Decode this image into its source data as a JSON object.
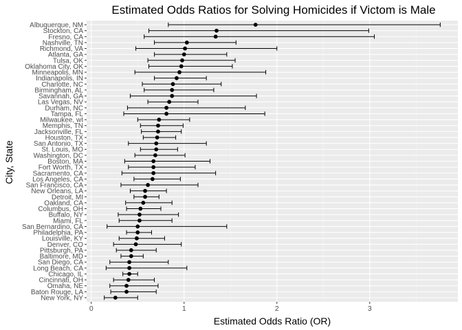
{
  "chart_data": {
    "type": "scatter",
    "title": "Estimated Odds Ratios for Solving Homicides if Victom is Male",
    "xlabel": "Estimated Odds Ratio (OR)",
    "ylabel": "City, State",
    "xlim": [
      -0.05,
      3.95
    ],
    "xticks": [
      0,
      1,
      2,
      3
    ],
    "grid": true,
    "legend": "none",
    "point_color": "#000000",
    "panel_color": "#ebebeb",
    "cities": [
      {
        "name": "Albuquerque, NM",
        "or": 1.77,
        "lo": 0.83,
        "hi": 3.76
      },
      {
        "name": "Stockton, CA",
        "or": 1.35,
        "lo": 0.62,
        "hi": 2.99
      },
      {
        "name": "Fresno, CA",
        "or": 1.34,
        "lo": 0.57,
        "hi": 3.05
      },
      {
        "name": "Nashville, TN",
        "or": 1.03,
        "lo": 0.68,
        "hi": 1.56
      },
      {
        "name": "Richmond, VA",
        "or": 1.01,
        "lo": 0.48,
        "hi": 2.0
      },
      {
        "name": "Atlanta, GA",
        "or": 1.0,
        "lo": 0.68,
        "hi": 1.46
      },
      {
        "name": "Tulsa, OK",
        "or": 0.98,
        "lo": 0.61,
        "hi": 1.55
      },
      {
        "name": "Oklahoma City, OK",
        "or": 0.97,
        "lo": 0.62,
        "hi": 1.52
      },
      {
        "name": "Minneapolis, MN",
        "or": 0.95,
        "lo": 0.47,
        "hi": 1.88
      },
      {
        "name": "Indianapolis, IN",
        "or": 0.92,
        "lo": 0.68,
        "hi": 1.24
      },
      {
        "name": "Charlotte, NC",
        "or": 0.88,
        "lo": 0.55,
        "hi": 1.4
      },
      {
        "name": "Birmingham, AL",
        "or": 0.87,
        "lo": 0.57,
        "hi": 1.32
      },
      {
        "name": "Savannah, GA",
        "or": 0.87,
        "lo": 0.42,
        "hi": 1.78
      },
      {
        "name": "Las Vegas, NV",
        "or": 0.84,
        "lo": 0.61,
        "hi": 1.15
      },
      {
        "name": "Durham, NC",
        "or": 0.81,
        "lo": 0.39,
        "hi": 1.66
      },
      {
        "name": "Tampa, FL",
        "or": 0.81,
        "lo": 0.35,
        "hi": 1.87
      },
      {
        "name": "Milwaukee, wI",
        "or": 0.73,
        "lo": 0.5,
        "hi": 1.06
      },
      {
        "name": "Memphis, TN",
        "or": 0.72,
        "lo": 0.53,
        "hi": 0.99
      },
      {
        "name": "Jacksonville, FL",
        "or": 0.72,
        "lo": 0.54,
        "hi": 0.97
      },
      {
        "name": "Houston, TX",
        "or": 0.71,
        "lo": 0.56,
        "hi": 0.91
      },
      {
        "name": "San Antonio, TX",
        "or": 0.7,
        "lo": 0.4,
        "hi": 1.24
      },
      {
        "name": "St. Louis, MO",
        "or": 0.7,
        "lo": 0.53,
        "hi": 0.93
      },
      {
        "name": "Washington, DC",
        "or": 0.69,
        "lo": 0.47,
        "hi": 1.01
      },
      {
        "name": "Boston, MA",
        "or": 0.67,
        "lo": 0.36,
        "hi": 1.28
      },
      {
        "name": "Fort Worth, TX",
        "or": 0.67,
        "lo": 0.4,
        "hi": 1.12
      },
      {
        "name": "Sacramento, CA",
        "or": 0.67,
        "lo": 0.33,
        "hi": 1.34
      },
      {
        "name": "Los Angeles, CA",
        "or": 0.66,
        "lo": 0.46,
        "hi": 0.96
      },
      {
        "name": "San Francisco, CA",
        "or": 0.61,
        "lo": 0.32,
        "hi": 1.15
      },
      {
        "name": "New Orleans, LA",
        "or": 0.58,
        "lo": 0.42,
        "hi": 0.81
      },
      {
        "name": "Detroit, MI",
        "or": 0.58,
        "lo": 0.46,
        "hi": 0.73
      },
      {
        "name": "Oakland, CA",
        "or": 0.56,
        "lo": 0.37,
        "hi": 0.87
      },
      {
        "name": "Columbus, OH",
        "or": 0.53,
        "lo": 0.38,
        "hi": 0.75
      },
      {
        "name": "Buffalo, NY",
        "or": 0.52,
        "lo": 0.29,
        "hi": 0.94
      },
      {
        "name": "Miami, FL",
        "or": 0.52,
        "lo": 0.3,
        "hi": 0.87
      },
      {
        "name": "San Bernardino, CA",
        "or": 0.5,
        "lo": 0.17,
        "hi": 1.46
      },
      {
        "name": "Philadelphia, PA",
        "or": 0.5,
        "lo": 0.38,
        "hi": 0.65
      },
      {
        "name": "Louisville, KY",
        "or": 0.49,
        "lo": 0.3,
        "hi": 0.79
      },
      {
        "name": "Denver, CO",
        "or": 0.48,
        "lo": 0.24,
        "hi": 0.97
      },
      {
        "name": "Pittsburgh, PA",
        "or": 0.43,
        "lo": 0.27,
        "hi": 0.7
      },
      {
        "name": "Baltimore, MD",
        "or": 0.43,
        "lo": 0.32,
        "hi": 0.56
      },
      {
        "name": "San Diego, CA",
        "or": 0.41,
        "lo": 0.2,
        "hi": 0.83
      },
      {
        "name": "Long Beach, CA",
        "or": 0.41,
        "lo": 0.16,
        "hi": 1.03
      },
      {
        "name": "Chicago, IL",
        "or": 0.41,
        "lo": 0.34,
        "hi": 0.5
      },
      {
        "name": "Cincinnati, OH",
        "or": 0.4,
        "lo": 0.24,
        "hi": 0.68
      },
      {
        "name": "Omaha, NE",
        "or": 0.38,
        "lo": 0.2,
        "hi": 0.72
      },
      {
        "name": "Baton Rouge, LA",
        "or": 0.38,
        "lo": 0.21,
        "hi": 0.7
      },
      {
        "name": "New York, NY",
        "or": 0.26,
        "lo": 0.14,
        "hi": 0.5
      }
    ]
  }
}
